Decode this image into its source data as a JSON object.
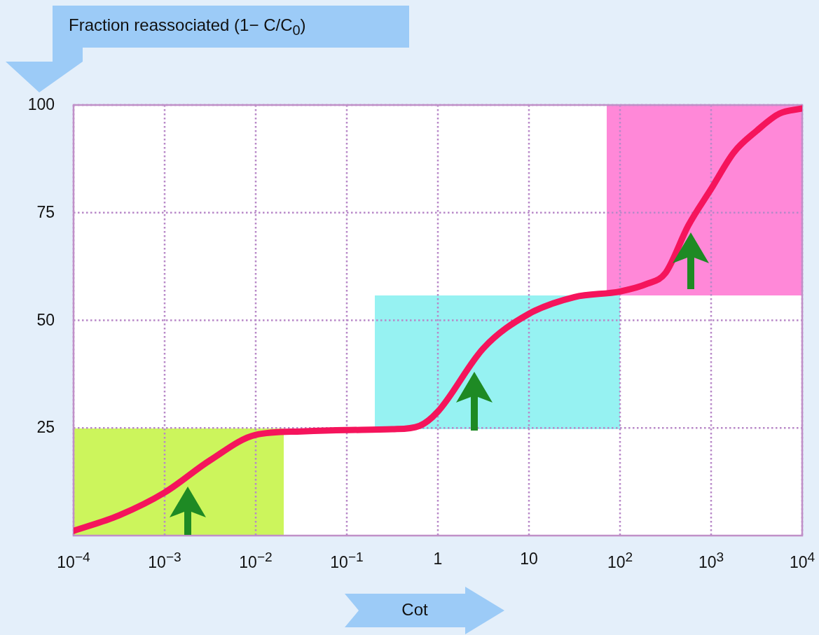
{
  "chart_data": {
    "type": "line",
    "xlabel": "Cot",
    "ylabel": "Fraction reassociated (1− C/C$_{0}$)",
    "log": "x",
    "grid": true,
    "legend": false,
    "marker": "none",
    "line_style": "solid",
    "xlim": [
      0.0001,
      10000
    ],
    "ylim": [
      0,
      100
    ],
    "xticks": [
      {
        "value": 0.0001,
        "label": "10$^{−4}$"
      },
      {
        "value": 0.001,
        "label": "10$^{−3}$"
      },
      {
        "value": 0.01,
        "label": "10$^{−2}$"
      },
      {
        "value": 0.1,
        "label": "10$^{−1}$"
      },
      1,
      10,
      {
        "value": 100,
        "label": "10$^{2}$"
      },
      {
        "value": 1000,
        "label": "10$^{3}$"
      },
      {
        "value": 10000,
        "label": "10$^{4}$"
      }
    ],
    "yticks": [
      25,
      50,
      75,
      100
    ],
    "series": [
      {
        "color": "#f5145c",
        "x": [
          0.0001,
          0.000316,
          0.001,
          0.00316,
          0.01,
          0.0316,
          0.1,
          0.316,
          0.63,
          1,
          3.16,
          10,
          31.6,
          100,
          200,
          316,
          562,
          1000,
          1778,
          3162,
          5623,
          10000
        ],
        "values": [
          1.1,
          4.7,
          10,
          17.5,
          23.4,
          24.2,
          24.5,
          24.7,
          25.5,
          28.8,
          43.5,
          51.5,
          55.4,
          56.7,
          58.5,
          61,
          72,
          80.5,
          89,
          94,
          98,
          99.2
        ]
      }
    ]
  }
}
